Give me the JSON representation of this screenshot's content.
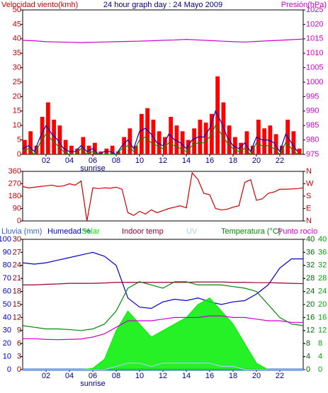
{
  "chart_data": [
    {
      "type": "bar",
      "title": "24 hour graph day : 24 Mayo 2009",
      "ylabel": "Velocidad viento(kmh)",
      "y2label": "Presión(hPa)",
      "xlim": [
        0,
        24
      ],
      "xticks": [
        {
          "value": 2,
          "label": "02"
        },
        {
          "value": 4,
          "label": "04"
        },
        {
          "value": 6,
          "label": "06"
        },
        {
          "value": 8,
          "label": "08"
        },
        10,
        12,
        14,
        16,
        18,
        20,
        22
      ],
      "annotation": "sunrise",
      "annotation_x": 6,
      "ylim": [
        0,
        50
      ],
      "yticks": [
        0,
        5,
        10,
        15,
        20,
        25,
        30,
        35,
        40,
        45,
        50
      ],
      "ytick_color": "#cc0000",
      "y2lim": [
        975,
        1025
      ],
      "y2ticks": [
        975,
        980,
        985,
        990,
        995,
        1000,
        1005,
        1010,
        1015,
        1020,
        1025
      ],
      "y2tick_color": "#cc00cc",
      "series": [
        {
          "style": "bar",
          "color": "#ff0000",
          "x": [
            0,
            0.5,
            1,
            1.5,
            2,
            2.5,
            3,
            3.5,
            4,
            4.5,
            5,
            5.5,
            6,
            6.5,
            7,
            7.5,
            8,
            8.5,
            9,
            9.5,
            10,
            10.5,
            11,
            11.5,
            12,
            12.5,
            13,
            13.5,
            14,
            14.5,
            15,
            15.5,
            16,
            16.5,
            17,
            17.5,
            18,
            18.5,
            19,
            19.5,
            20,
            20.5,
            21,
            21.5,
            22,
            22.5,
            23,
            23.5
          ],
          "values": [
            5,
            8,
            3,
            13,
            18,
            12,
            10,
            5,
            3,
            2,
            6,
            3,
            4,
            1,
            2,
            3,
            1,
            6,
            9,
            3,
            14,
            16,
            12,
            8,
            6,
            13,
            10,
            8,
            5,
            9,
            12,
            11,
            14,
            27,
            18,
            10,
            6,
            4,
            8,
            3,
            12,
            9,
            10,
            7,
            3,
            12,
            8,
            2
          ]
        },
        {
          "style": "line",
          "color": "#0000cc",
          "x": [
            0,
            0.5,
            1,
            1.5,
            2,
            2.5,
            3,
            3.5,
            4,
            4.5,
            5,
            5.5,
            6,
            6.5,
            7,
            7.5,
            8,
            8.5,
            9,
            9.5,
            10,
            10.5,
            11,
            11.5,
            12,
            12.5,
            13,
            13.5,
            14,
            14.5,
            15,
            15.5,
            16,
            16.5,
            17,
            17.5,
            18,
            18.5,
            19,
            19.5,
            20,
            20.5,
            21,
            21.5,
            22,
            22.5,
            23,
            23.5
          ],
          "values": [
            2,
            3,
            1,
            6,
            10,
            7,
            5,
            2,
            1,
            1,
            3,
            1,
            2,
            0,
            1,
            1,
            0,
            3,
            5,
            2,
            8,
            9,
            7,
            4,
            3,
            7,
            5,
            4,
            2,
            5,
            6,
            6,
            9,
            15,
            11,
            6,
            3,
            2,
            4,
            1,
            6,
            5,
            5,
            4,
            1,
            7,
            4,
            1
          ]
        },
        {
          "style": "line",
          "color": "#008800",
          "x": [
            0,
            0.5,
            1,
            1.5,
            2,
            2.5,
            3,
            3.5,
            4,
            4.5,
            5,
            5.5,
            6,
            6.5,
            7,
            7.5,
            8,
            8.5,
            9,
            9.5,
            10,
            10.5,
            11,
            11.5,
            12,
            12.5,
            13,
            13.5,
            14,
            14.5,
            15,
            15.5,
            16,
            16.5,
            17,
            17.5,
            18,
            18.5,
            19,
            19.5,
            20,
            20.5,
            21,
            21.5,
            22,
            22.5,
            23,
            23.5
          ],
          "values": [
            1,
            2,
            0,
            4,
            7,
            5,
            3,
            1,
            0,
            0,
            2,
            0,
            1,
            0,
            0,
            0,
            0,
            2,
            3,
            1,
            5,
            6,
            4,
            3,
            2,
            4,
            3,
            2,
            1,
            3,
            4,
            4,
            6,
            10,
            7,
            4,
            2,
            1,
            2,
            0,
            4,
            3,
            3,
            2,
            0,
            4,
            2,
            0
          ]
        },
        {
          "style": "line",
          "color": "#cc00cc",
          "axis": "y2",
          "x": [
            0,
            1,
            2,
            3,
            4,
            5,
            6,
            7,
            8,
            9,
            10,
            11,
            12,
            13,
            14,
            15,
            16,
            17,
            18,
            19,
            20,
            21,
            22,
            23,
            24
          ],
          "values": [
            1014.5,
            1014.3,
            1014,
            1013.9,
            1013.8,
            1013.7,
            1013.8,
            1013.9,
            1014,
            1014.1,
            1014.2,
            1014.3,
            1014.5,
            1014.6,
            1014.8,
            1014.6,
            1014.4,
            1014.2,
            1014,
            1013.9,
            1014.1,
            1014.3,
            1014.5,
            1014.7,
            1014.9
          ]
        }
      ]
    },
    {
      "type": "line",
      "xlim": [
        0,
        24
      ],
      "ylim": [
        0,
        360
      ],
      "yticks": [
        0,
        90,
        180,
        270,
        360
      ],
      "ytick_color": "#cc0000",
      "y2lim": [
        0,
        360
      ],
      "y2ticks": [
        {
          "value": 0,
          "label": "N"
        },
        {
          "value": 90,
          "label": "E"
        },
        {
          "value": 180,
          "label": "S"
        },
        {
          "value": 270,
          "label": "W"
        },
        {
          "value": 360,
          "label": "N"
        }
      ],
      "y2tick_color": "#cc0000",
      "series": [
        {
          "style": "line",
          "color": "#cc0000",
          "x": [
            0,
            0.5,
            1,
            1.5,
            2,
            2.5,
            3,
            3.5,
            4,
            4.5,
            5,
            5.5,
            6,
            6.5,
            7,
            7.5,
            8,
            8.5,
            9,
            9.5,
            10,
            10.5,
            11,
            11.5,
            12,
            12.5,
            13,
            13.5,
            14,
            14.5,
            15,
            15.5,
            16,
            16.5,
            17,
            17.5,
            18,
            18.5,
            19,
            19.5,
            20,
            20.5,
            21,
            21.5,
            22,
            22.5,
            23,
            23.5,
            24
          ],
          "values": [
            250,
            240,
            245,
            250,
            255,
            260,
            250,
            255,
            270,
            260,
            290,
            0,
            240,
            235,
            240,
            238,
            245,
            230,
            60,
            40,
            70,
            50,
            80,
            60,
            75,
            90,
            100,
            110,
            95,
            350,
            300,
            200,
            190,
            90,
            80,
            85,
            100,
            110,
            280,
            300,
            150,
            160,
            200,
            210,
            230,
            230,
            232,
            235,
            240
          ]
        }
      ]
    },
    {
      "type": "line",
      "xlim": [
        0,
        24
      ],
      "xticks": [
        {
          "value": 2,
          "label": "02"
        },
        {
          "value": 4,
          "label": "04"
        },
        {
          "value": 6,
          "label": "06"
        },
        {
          "value": 8,
          "label": "08"
        },
        10,
        12,
        14,
        16,
        18,
        20,
        22
      ],
      "annotation": "sunrise",
      "annotation_x": 6,
      "ylim": [
        0,
        100
      ],
      "yticks": [
        0,
        10,
        20,
        30,
        40,
        50,
        60,
        70,
        80,
        90,
        100
      ],
      "ytick_color": "#0000cc",
      "y3lim": [
        0,
        30
      ],
      "y3ticks": [
        0,
        3,
        6,
        9,
        12,
        15,
        18,
        21,
        24,
        27,
        30
      ],
      "y3tick_color": "#880000",
      "y2lim": [
        0,
        40
      ],
      "y2ticks": [
        0,
        4,
        8,
        12,
        16,
        20,
        24,
        28,
        32,
        36,
        40
      ],
      "y2tick_color": "#006600",
      "y2tick_color_2": "#00aa00",
      "series": [
        {
          "name": "Lluvia (mm)",
          "style": "line",
          "color": "#3366cc",
          "axis": "y3",
          "x": [
            0,
            1,
            2,
            3,
            4,
            5,
            6,
            7,
            8,
            9,
            10,
            11,
            12,
            13,
            14,
            15,
            16,
            17,
            18,
            19,
            20,
            21,
            22,
            23,
            24
          ],
          "values": [
            0,
            0,
            0,
            0,
            0,
            0,
            0,
            0,
            0,
            0,
            0,
            0,
            0,
            0,
            0,
            0,
            0,
            0,
            0,
            0,
            0,
            0,
            0,
            0,
            0
          ]
        },
        {
          "name": "Humedad %",
          "style": "line",
          "color": "#0000cc",
          "x": [
            0,
            1,
            2,
            3,
            4,
            5,
            6,
            7,
            8,
            9,
            10,
            11,
            12,
            13,
            14,
            15,
            16,
            17,
            18,
            19,
            20,
            21,
            22,
            23,
            24
          ],
          "values": [
            82,
            81,
            82,
            84,
            86,
            88,
            90,
            87,
            80,
            55,
            48,
            47,
            52,
            54,
            53,
            55,
            52,
            50,
            52,
            53,
            58,
            65,
            78,
            85,
            85
          ]
        },
        {
          "name": "Solar",
          "style": "area",
          "color": "#00ee00",
          "x": [
            0,
            1,
            2,
            3,
            4,
            5,
            6,
            7,
            8,
            9,
            10,
            11,
            12,
            13,
            14,
            15,
            16,
            17,
            18,
            19,
            20,
            21,
            22,
            23,
            24
          ],
          "values": [
            0,
            0,
            0,
            0,
            0,
            0,
            1,
            8,
            30,
            45,
            35,
            25,
            30,
            35,
            40,
            50,
            55,
            45,
            35,
            20,
            5,
            0,
            0,
            0,
            0
          ]
        },
        {
          "name": "Indoor temp",
          "style": "line",
          "color": "#990033",
          "axis": "y2",
          "x": [
            0,
            1,
            2,
            3,
            4,
            5,
            6,
            7,
            8,
            9,
            10,
            11,
            12,
            13,
            14,
            15,
            16,
            17,
            18,
            19,
            20,
            21,
            22,
            23,
            24
          ],
          "values": [
            26,
            26,
            26.2,
            26.3,
            26.5,
            26.5,
            26.5,
            26.6,
            26.8,
            26.8,
            26.8,
            26.8,
            26.8,
            26.8,
            26.8,
            26.9,
            26.9,
            26.9,
            26.8,
            26.8,
            26.7,
            26.7,
            26.6,
            26.5,
            26.4
          ]
        },
        {
          "name": "UV",
          "style": "line",
          "color": "#aaccff",
          "axis": "y2",
          "x": [
            0,
            1,
            2,
            3,
            4,
            5,
            6,
            7,
            8,
            9,
            10,
            11,
            12,
            13,
            14,
            15,
            16,
            17,
            18,
            19,
            20,
            21,
            22,
            23,
            24
          ],
          "values": [
            0,
            0,
            0,
            0,
            0,
            0,
            0,
            0,
            1,
            2,
            2,
            1,
            2,
            2,
            2,
            2,
            2,
            1,
            1,
            0,
            0,
            0,
            0,
            0,
            0
          ]
        },
        {
          "name": "Temperatura (°C)",
          "style": "line",
          "color": "#008800",
          "axis": "y2",
          "x": [
            0,
            1,
            2,
            3,
            4,
            5,
            6,
            7,
            8,
            9,
            10,
            11,
            12,
            13,
            14,
            15,
            16,
            17,
            18,
            19,
            20,
            21,
            22,
            23,
            24
          ],
          "values": [
            13.5,
            13,
            12.5,
            12.5,
            12.3,
            12,
            12.5,
            14,
            18,
            25,
            27,
            26,
            25,
            27,
            27,
            26,
            26,
            26,
            25.5,
            25,
            24,
            20,
            16,
            14,
            13.5
          ]
        },
        {
          "name": "Punto rocío",
          "style": "line",
          "color": "#cc00cc",
          "axis": "y2",
          "x": [
            0,
            1,
            2,
            3,
            4,
            5,
            6,
            7,
            8,
            9,
            10,
            11,
            12,
            13,
            14,
            15,
            16,
            17,
            18,
            19,
            20,
            21,
            22,
            23,
            24
          ],
          "values": [
            9.5,
            9.5,
            9.3,
            9.2,
            9.3,
            9.4,
            10,
            11,
            13,
            15,
            15,
            15,
            15.5,
            16,
            16,
            16,
            16.5,
            16.5,
            16,
            16,
            15.5,
            15,
            15,
            14.5,
            14.5
          ]
        }
      ]
    }
  ]
}
